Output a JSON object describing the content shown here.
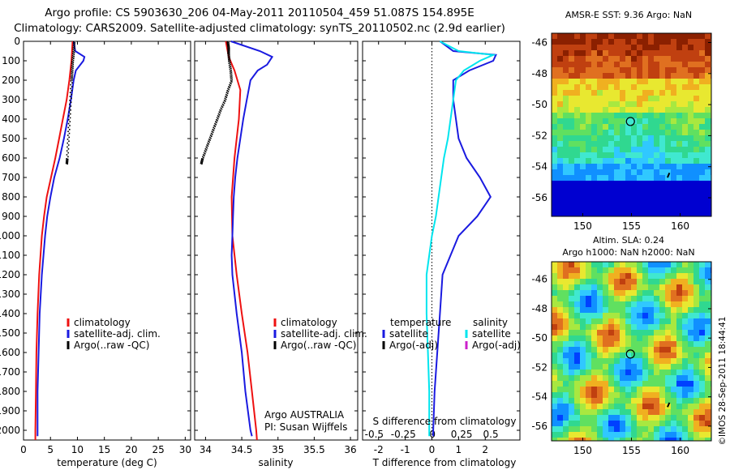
{
  "header": {
    "title_line1": "Argo profile: CS 5903630_206 04-May-2011 20110504_459 51.087S 154.895E",
    "title_line2": "Climatology: CARS2009. Satellite-adjusted climatology: synTS_20110502.nc (2.9d earlier)"
  },
  "maps": {
    "sst_title": "AMSR-E SST: 9.36 Argo: NaN",
    "sla_title_line1": "Altim. SLA: 0.24",
    "sla_title_line2": "Argo h1000: NaN h2000: NaN",
    "lon_ticks": [
      "150",
      "155",
      "160"
    ],
    "lat_ticks": [
      "-46",
      "-48",
      "-50",
      "-52",
      "-54",
      "-56"
    ],
    "float_marker": {
      "lon": 154.895,
      "lat": -51.087
    },
    "stamp": "©IMOS 28-Sep-2011 18:44:41"
  },
  "colors": {
    "climatology": "#ee1111",
    "satellite": "#1a1ae0",
    "argo": "#000000",
    "satellite_salinity": "#00e5ee",
    "argo_salinity_adj": "#cc22cc"
  },
  "panels": {
    "temperature": {
      "xlabel": "temperature (deg C)",
      "legend": [
        "climatology",
        "satellite-adj. clim.",
        "Argo(..raw -QC)"
      ]
    },
    "salinity": {
      "xlabel": "salinity",
      "legend": [
        "climatology",
        "satellite-adj. clim.",
        "Argo(..raw -QC)"
      ],
      "note_line1": "Argo AUSTRALIA",
      "note_line2": "PI: Susan Wijffels"
    },
    "difference": {
      "xlabel_top": "S difference from climatology",
      "xlabel_bottom": "T difference from climatology",
      "legend_temp_header": "temperature",
      "legend_temp": [
        "satellite",
        "Argo(-adj)"
      ],
      "legend_sal_header": "salinity",
      "legend_sal": [
        "satellite",
        "Argo(-adj)"
      ]
    }
  },
  "chart_data": [
    {
      "type": "line",
      "ylabel": "",
      "xlabel": "temperature (deg C)",
      "xlim": [
        0,
        31
      ],
      "ylim": [
        2050,
        0
      ],
      "xticks": [
        0,
        5,
        10,
        15,
        20,
        25,
        30
      ],
      "yticks": [
        0,
        100,
        200,
        300,
        400,
        500,
        600,
        700,
        800,
        900,
        1000,
        1100,
        1200,
        1300,
        1400,
        1500,
        1600,
        1700,
        1800,
        1900,
        2000
      ],
      "series": [
        {
          "name": "climatology",
          "y": [
            0,
            50,
            100,
            200,
            300,
            400,
            500,
            600,
            700,
            800,
            900,
            1000,
            1200,
            1400,
            1600,
            1800,
            2000,
            2050
          ],
          "x": [
            9.1,
            9.0,
            8.9,
            8.5,
            8.0,
            7.3,
            6.6,
            5.9,
            5.1,
            4.3,
            3.8,
            3.4,
            2.9,
            2.6,
            2.4,
            2.3,
            2.2,
            2.2
          ]
        },
        {
          "name": "satellite-adj. clim.",
          "y": [
            0,
            50,
            80,
            100,
            150,
            200,
            300,
            400,
            500,
            600,
            700,
            800,
            900,
            1000,
            1200,
            1400,
            1600,
            1800,
            2000,
            2030
          ],
          "x": [
            9.3,
            9.6,
            11.3,
            11.1,
            9.7,
            9.3,
            8.8,
            8.2,
            7.5,
            6.7,
            5.7,
            5.0,
            4.4,
            4.0,
            3.4,
            3.0,
            2.8,
            2.6,
            2.6,
            2.6
          ]
        },
        {
          "name": "Argo(..raw -QC)",
          "y": [
            0,
            50,
            100,
            150,
            200,
            300,
            400,
            500,
            600,
            630
          ],
          "x": [
            9.3,
            9.2,
            9.0,
            8.9,
            8.8,
            8.6,
            8.4,
            8.2,
            8.0,
            7.9
          ]
        }
      ]
    },
    {
      "type": "line",
      "xlabel": "salinity",
      "xlim": [
        33.85,
        36.1
      ],
      "ylim": [
        2050,
        0
      ],
      "xticks": [
        34,
        34.5,
        35,
        35.5,
        36
      ],
      "series": [
        {
          "name": "climatology",
          "y": [
            0,
            80,
            150,
            250,
            400,
            600,
            800,
            1000,
            1200,
            1400,
            1600,
            1800,
            2000,
            2050
          ],
          "x": [
            34.28,
            34.32,
            34.4,
            34.48,
            34.46,
            34.4,
            34.36,
            34.37,
            34.43,
            34.5,
            34.58,
            34.64,
            34.7,
            34.71
          ]
        },
        {
          "name": "satellite-adj. clim.",
          "y": [
            0,
            50,
            80,
            120,
            150,
            200,
            300,
            400,
            500,
            600,
            700,
            800,
            900,
            1000,
            1100,
            1200,
            1400,
            1600,
            1800,
            2000,
            2030
          ],
          "x": [
            34.35,
            34.75,
            34.92,
            34.85,
            34.72,
            34.62,
            34.57,
            34.52,
            34.48,
            34.44,
            34.41,
            34.39,
            34.38,
            34.37,
            34.36,
            34.37,
            34.43,
            34.5,
            34.55,
            34.62,
            34.64
          ]
        },
        {
          "name": "Argo(..raw -QC)",
          "y": [
            0,
            30,
            60,
            100,
            150,
            200,
            250,
            300,
            350,
            400,
            450,
            500,
            550,
            600,
            630
          ],
          "x": [
            34.3,
            34.31,
            34.31,
            34.32,
            34.34,
            34.35,
            34.3,
            34.26,
            34.2,
            34.15,
            34.1,
            34.05,
            34.0,
            33.95,
            33.93
          ]
        }
      ]
    },
    {
      "type": "line",
      "xlabel": "T difference from climatology",
      "xlabel_top": "S difference from climatology",
      "xlim": [
        -2.6,
        3.3
      ],
      "ylim": [
        2050,
        0
      ],
      "xticks": [
        -2,
        -1,
        0,
        1,
        2
      ],
      "xticks_top": [
        -0.5,
        -0.25,
        0,
        0.25,
        0.5
      ],
      "series": [
        {
          "name": "temperature satellite",
          "y": [
            0,
            50,
            70,
            100,
            150,
            200,
            300,
            400,
            500,
            600,
            700,
            800,
            900,
            1000,
            1100,
            1200,
            1400,
            1600,
            1800,
            2000,
            2030
          ],
          "x": [
            0.3,
            0.8,
            2.4,
            2.3,
            1.4,
            0.8,
            0.8,
            0.9,
            1.0,
            1.3,
            1.8,
            2.2,
            1.7,
            1.0,
            0.7,
            0.4,
            0.3,
            0.2,
            0.1,
            0.05,
            0.05
          ]
        },
        {
          "name": "salinity satellite",
          "y": [
            0,
            50,
            70,
            100,
            150,
            200,
            300,
            400,
            500,
            600,
            700,
            800,
            900,
            1000,
            1100,
            1200,
            1300,
            1400,
            1600,
            1800,
            2000,
            2030
          ],
          "x": [
            0.3,
            1.0,
            2.3,
            1.8,
            1.2,
            0.9,
            0.8,
            0.7,
            0.6,
            0.45,
            0.35,
            0.25,
            0.15,
            0.0,
            -0.1,
            -0.2,
            -0.2,
            -0.2,
            -0.15,
            -0.1,
            -0.1,
            -0.1
          ]
        }
      ]
    }
  ]
}
